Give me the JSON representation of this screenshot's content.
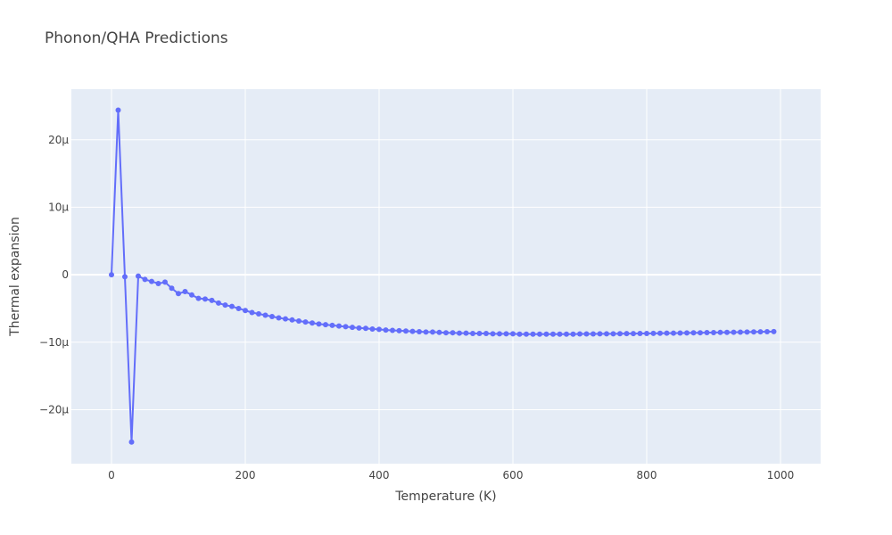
{
  "chart_data": {
    "type": "scatter",
    "mode": "lines+markers",
    "title": "Phonon/QHA Predictions",
    "xlabel": "Temperature (K)",
    "ylabel": "Thermal expansion",
    "xlim": [
      -60,
      1060
    ],
    "ylim": [
      -2.8e-05,
      2.75e-05
    ],
    "x_ticks": [
      0,
      200,
      400,
      600,
      800,
      1000
    ],
    "x_tick_labels": [
      "0",
      "200",
      "400",
      "600",
      "800",
      "1000"
    ],
    "y_ticks": [
      -2e-05,
      -1e-05,
      0,
      1e-05,
      2e-05
    ],
    "y_tick_labels": [
      "−20μ",
      "−10μ",
      "0",
      "10μ",
      "20μ"
    ],
    "grid": true,
    "colors": {
      "plot_background": "#e5ecf6",
      "grid": "#ffffff",
      "series": "#636efa"
    },
    "series": [
      {
        "x": [
          0,
          10,
          20,
          30,
          40,
          50,
          60,
          70,
          80,
          90,
          100,
          110,
          120,
          130,
          140,
          150,
          160,
          170,
          180,
          190,
          200,
          210,
          220,
          230,
          240,
          250,
          260,
          270,
          280,
          290,
          300,
          310,
          320,
          330,
          340,
          350,
          360,
          370,
          380,
          390,
          400,
          410,
          420,
          430,
          440,
          450,
          460,
          470,
          480,
          490,
          500,
          510,
          520,
          530,
          540,
          550,
          560,
          570,
          580,
          590,
          600,
          610,
          620,
          630,
          640,
          650,
          660,
          670,
          680,
          690,
          700,
          710,
          720,
          730,
          740,
          750,
          760,
          770,
          780,
          790,
          800,
          810,
          820,
          830,
          840,
          850,
          860,
          870,
          880,
          890,
          900,
          910,
          920,
          930,
          940,
          950,
          960,
          970,
          980,
          990
        ],
        "y": [
          0,
          2.44e-05,
          -3e-07,
          -2.48e-05,
          -2e-07,
          -7e-07,
          -1e-06,
          -1.3e-06,
          -1.1e-06,
          -2e-06,
          -2.8e-06,
          -2.5e-06,
          -3e-06,
          -3.5e-06,
          -3.6e-06,
          -3.8e-06,
          -4.2e-06,
          -4.5e-06,
          -4.7e-06,
          -5e-06,
          -5.3e-06,
          -5.6e-06,
          -5.8e-06,
          -6e-06,
          -6.2e-06,
          -6.4e-06,
          -6.55e-06,
          -6.7e-06,
          -6.85e-06,
          -7e-06,
          -7.15e-06,
          -7.3e-06,
          -7.4e-06,
          -7.5e-06,
          -7.6e-06,
          -7.7e-06,
          -7.8e-06,
          -7.9e-06,
          -7.95e-06,
          -8.05e-06,
          -8.1e-06,
          -8.2e-06,
          -8.25e-06,
          -8.3e-06,
          -8.35e-06,
          -8.4e-06,
          -8.45e-06,
          -8.5e-06,
          -8.5e-06,
          -8.55e-06,
          -8.6e-06,
          -8.6e-06,
          -8.65e-06,
          -8.65e-06,
          -8.7e-06,
          -8.7e-06,
          -8.7e-06,
          -8.75e-06,
          -8.75e-06,
          -8.75e-06,
          -8.75e-06,
          -8.8e-06,
          -8.8e-06,
          -8.8e-06,
          -8.8e-06,
          -8.8e-06,
          -8.8e-06,
          -8.8e-06,
          -8.8e-06,
          -8.8e-06,
          -8.78e-06,
          -8.78e-06,
          -8.78e-06,
          -8.76e-06,
          -8.76e-06,
          -8.75e-06,
          -8.74e-06,
          -8.73e-06,
          -8.72e-06,
          -8.71e-06,
          -8.7e-06,
          -8.69e-06,
          -8.68e-06,
          -8.66e-06,
          -8.65e-06,
          -8.64e-06,
          -8.62e-06,
          -8.61e-06,
          -8.6e-06,
          -8.58e-06,
          -8.57e-06,
          -8.55e-06,
          -8.54e-06,
          -8.52e-06,
          -8.51e-06,
          -8.49e-06,
          -8.48e-06,
          -8.46e-06,
          -8.45e-06,
          -8.43e-06
        ]
      }
    ]
  }
}
